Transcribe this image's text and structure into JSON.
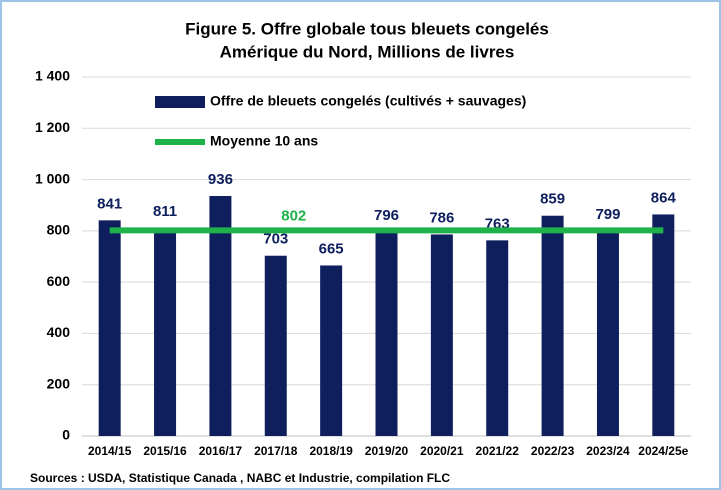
{
  "chart_data": {
    "type": "bar",
    "title": "Figure 5. Offre globale tous bleuets congelés",
    "subtitle": "Amérique du Nord, Millions de livres",
    "categories": [
      "2014/15",
      "2015/16",
      "2016/17",
      "2017/18",
      "2018/19",
      "2019/20",
      "2020/21",
      "2021/22",
      "2022/23",
      "2023/24",
      "2024/25e"
    ],
    "series": [
      {
        "name": "Offre de bleuets congelés (cultivés + sauvages)",
        "color": "#0f1f5e",
        "type": "bar",
        "values": [
          841,
          811,
          936,
          703,
          665,
          796,
          786,
          763,
          859,
          799,
          864
        ]
      },
      {
        "name": "Moyenne 10 ans",
        "color": "#1fb24a",
        "type": "line",
        "values": [
          802,
          802,
          802,
          802,
          802,
          802,
          802,
          802,
          802,
          802,
          802
        ]
      }
    ],
    "line_label_index": 3,
    "ylim": [
      0,
      1400
    ],
    "yticks": [
      0,
      200,
      400,
      600,
      800,
      {
        "value": 1000,
        "label": "1 000"
      },
      {
        "value": 1200,
        "label": "1 200"
      },
      {
        "value": 1400,
        "label": "1 400"
      }
    ],
    "grid": true,
    "source": "Sources : USDA, Statistique Canada , NABC et Industrie, compilation FLC"
  }
}
